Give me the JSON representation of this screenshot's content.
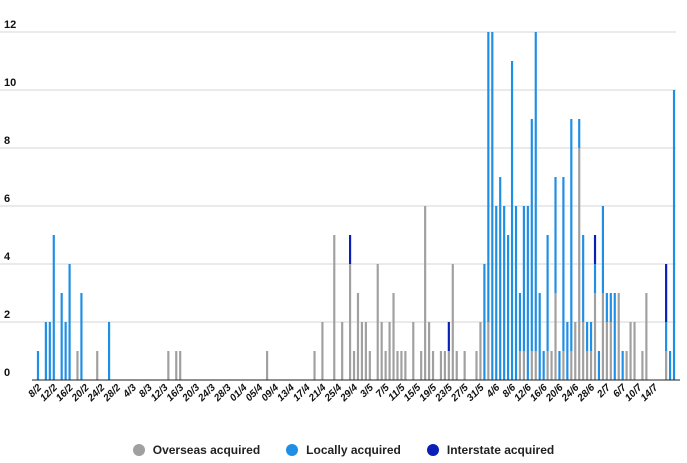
{
  "chart_data": {
    "type": "bar",
    "stacked": true,
    "ylim": [
      0,
      12
    ],
    "yticks": [
      0,
      2,
      4,
      6,
      8,
      10,
      12
    ],
    "grid": true,
    "legend_position": "bottom",
    "x_start_date": "2020-02-04",
    "x_end_date": "2020-07-14",
    "x_tick_labels": [
      "8/2",
      "12/2",
      "16/2",
      "20/2",
      "24/2",
      "28/2",
      "4/3",
      "8/3",
      "12/3",
      "16/3",
      "20/3",
      "24/3",
      "28/3",
      "01/4",
      "05/4",
      "09/4",
      "13/4",
      "17/4",
      "21/4",
      "25/4",
      "29/4",
      "3/5",
      "7/5",
      "11/5",
      "15/5",
      "19/5",
      "23/5",
      "27/5",
      "31/5",
      "4/6",
      "8/6",
      "12/6",
      "16/6",
      "20/6",
      "24/6",
      "28/6",
      "2/7",
      "6/7",
      "10/7",
      "14/7"
    ],
    "series": [
      {
        "name": "Overseas acquired",
        "color": "#a0a0a0",
        "points": [
          [
            "14/2",
            1
          ],
          [
            "19/2",
            1
          ],
          [
            "8/3",
            1
          ],
          [
            "10/3",
            1
          ],
          [
            "11/3",
            1
          ],
          [
            "2/4",
            1
          ],
          [
            "14/4",
            1
          ],
          [
            "16/4",
            2
          ],
          [
            "19/4",
            5
          ],
          [
            "21/4",
            2
          ],
          [
            "23/4",
            4
          ],
          [
            "24/4",
            1
          ],
          [
            "25/4",
            3
          ],
          [
            "26/4",
            2
          ],
          [
            "27/4",
            2
          ],
          [
            "28/4",
            1
          ],
          [
            "30/4",
            4
          ],
          [
            "1/5",
            2
          ],
          [
            "2/5",
            1
          ],
          [
            "3/5",
            2
          ],
          [
            "4/5",
            3
          ],
          [
            "5/5",
            1
          ],
          [
            "6/5",
            1
          ],
          [
            "7/5",
            1
          ],
          [
            "9/5",
            2
          ],
          [
            "11/5",
            1
          ],
          [
            "12/5",
            6
          ],
          [
            "13/5",
            2
          ],
          [
            "14/5",
            1
          ],
          [
            "16/5",
            1
          ],
          [
            "17/5",
            1
          ],
          [
            "18/5",
            1
          ],
          [
            "19/5",
            4
          ],
          [
            "20/5",
            1
          ],
          [
            "22/5",
            1
          ],
          [
            "25/5",
            1
          ],
          [
            "26/5",
            2
          ],
          [
            "28/5",
            2
          ],
          [
            "5/6",
            1
          ],
          [
            "6/6",
            1
          ],
          [
            "8/6",
            1
          ],
          [
            "9/6",
            1
          ],
          [
            "12/6",
            1
          ],
          [
            "13/6",
            1
          ],
          [
            "14/6",
            3
          ],
          [
            "16/6",
            1
          ],
          [
            "18/6",
            1
          ],
          [
            "19/6",
            2
          ],
          [
            "20/6",
            8
          ],
          [
            "21/6",
            2
          ],
          [
            "22/6",
            1
          ],
          [
            "23/6",
            1
          ],
          [
            "24/6",
            3
          ],
          [
            "26/6",
            3
          ],
          [
            "27/6",
            2
          ],
          [
            "28/6",
            2
          ],
          [
            "30/6",
            3
          ],
          [
            "2/7",
            1
          ],
          [
            "3/7",
            2
          ],
          [
            "4/7",
            2
          ],
          [
            "6/7",
            1
          ],
          [
            "7/7",
            3
          ],
          [
            "12/7",
            1
          ]
        ]
      },
      {
        "name": "Locally acquired",
        "color": "#1f8fe6",
        "points": [
          [
            "4/2",
            1
          ],
          [
            "6/2",
            2
          ],
          [
            "7/2",
            2
          ],
          [
            "8/2",
            5
          ],
          [
            "10/2",
            3
          ],
          [
            "11/2",
            2
          ],
          [
            "12/2",
            4
          ],
          [
            "15/2",
            3
          ],
          [
            "22/2",
            2
          ],
          [
            "27/5",
            4
          ],
          [
            "28/5",
            10
          ],
          [
            "29/5",
            12
          ],
          [
            "30/5",
            6
          ],
          [
            "31/5",
            7
          ],
          [
            "1/6",
            6
          ],
          [
            "2/6",
            5
          ],
          [
            "3/6",
            11
          ],
          [
            "4/6",
            6
          ],
          [
            "5/6",
            2
          ],
          [
            "6/6",
            5
          ],
          [
            "7/6",
            6
          ],
          [
            "8/6",
            8
          ],
          [
            "9/6",
            11
          ],
          [
            "10/6",
            3
          ],
          [
            "11/6",
            1
          ],
          [
            "12/6",
            4
          ],
          [
            "14/6",
            4
          ],
          [
            "15/6",
            1
          ],
          [
            "16/6",
            6
          ],
          [
            "17/6",
            2
          ],
          [
            "18/6",
            8
          ],
          [
            "20/6",
            1
          ],
          [
            "21/6",
            3
          ],
          [
            "22/6",
            1
          ],
          [
            "23/6",
            1
          ],
          [
            "24/6",
            1
          ],
          [
            "25/6",
            1
          ],
          [
            "26/6",
            3
          ],
          [
            "27/6",
            1
          ],
          [
            "28/6",
            1
          ],
          [
            "29/6",
            3
          ],
          [
            "1/7",
            1
          ],
          [
            "12/7",
            1
          ],
          [
            "13/7",
            1
          ],
          [
            "14/7",
            10
          ]
        ]
      },
      {
        "name": "Interstate acquired",
        "color": "#0a1fb8",
        "points": [
          [
            "23/4",
            1
          ],
          [
            "18/5",
            1
          ],
          [
            "24/6",
            1
          ],
          [
            "12/7",
            2
          ]
        ]
      }
    ]
  }
}
